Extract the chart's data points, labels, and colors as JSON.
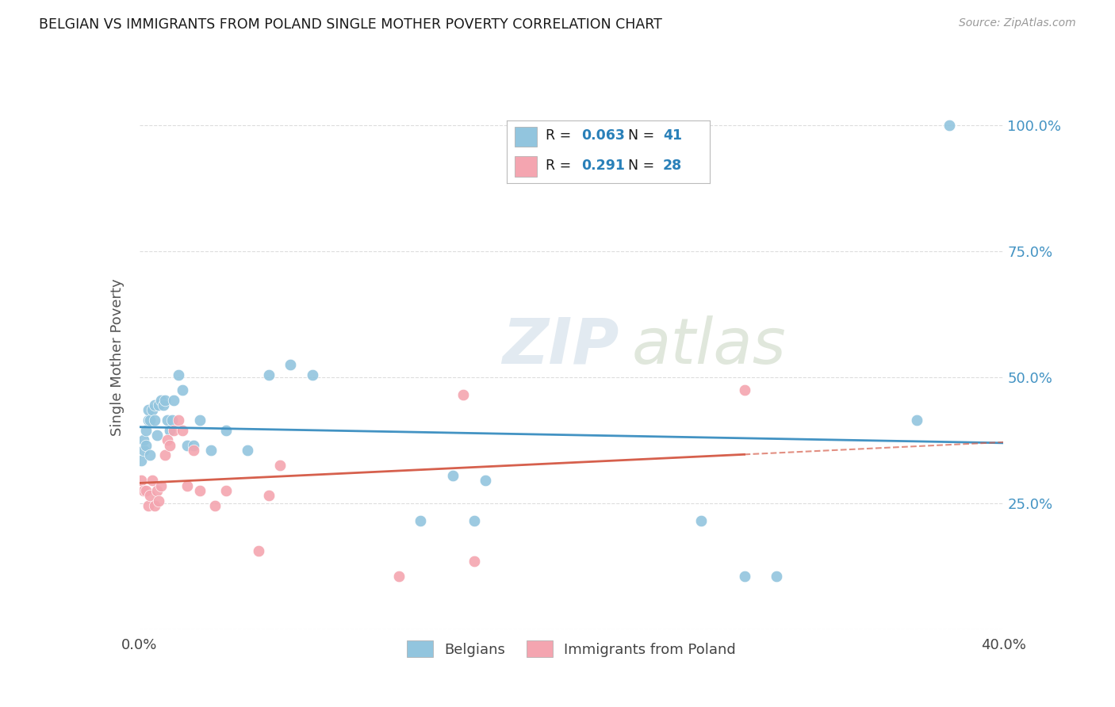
{
  "title": "BELGIAN VS IMMIGRANTS FROM POLAND SINGLE MOTHER POVERTY CORRELATION CHART",
  "source": "Source: ZipAtlas.com",
  "ylabel": "Single Mother Poverty",
  "legend_labels": [
    "Belgians",
    "Immigrants from Poland"
  ],
  "blue_R": "0.063",
  "blue_N": "41",
  "pink_R": "0.291",
  "pink_N": "28",
  "blue_color": "#92c5de",
  "pink_color": "#f4a5b0",
  "blue_line_color": "#4393c3",
  "pink_line_color": "#d6604d",
  "watermark_top": "ZIP",
  "watermark_bottom": "atlas",
  "blue_x": [
    0.001,
    0.002,
    0.002,
    0.003,
    0.003,
    0.004,
    0.004,
    0.005,
    0.005,
    0.006,
    0.007,
    0.007,
    0.008,
    0.009,
    0.01,
    0.011,
    0.012,
    0.013,
    0.014,
    0.015,
    0.016,
    0.018,
    0.02,
    0.022,
    0.025,
    0.028,
    0.033,
    0.04,
    0.05,
    0.06,
    0.07,
    0.08,
    0.13,
    0.145,
    0.155,
    0.16,
    0.26,
    0.28,
    0.295,
    0.36,
    0.375
  ],
  "blue_y": [
    0.335,
    0.355,
    0.375,
    0.365,
    0.395,
    0.415,
    0.435,
    0.345,
    0.415,
    0.435,
    0.445,
    0.415,
    0.385,
    0.445,
    0.455,
    0.445,
    0.455,
    0.415,
    0.395,
    0.415,
    0.455,
    0.505,
    0.475,
    0.365,
    0.365,
    0.415,
    0.355,
    0.395,
    0.355,
    0.505,
    0.525,
    0.505,
    0.215,
    0.305,
    0.215,
    0.295,
    0.215,
    0.105,
    0.105,
    0.415,
    1.0
  ],
  "pink_x": [
    0.001,
    0.002,
    0.003,
    0.004,
    0.005,
    0.006,
    0.007,
    0.008,
    0.009,
    0.01,
    0.012,
    0.013,
    0.014,
    0.016,
    0.018,
    0.02,
    0.022,
    0.025,
    0.028,
    0.035,
    0.04,
    0.055,
    0.06,
    0.065,
    0.12,
    0.15,
    0.155,
    0.28
  ],
  "pink_y": [
    0.295,
    0.275,
    0.275,
    0.245,
    0.265,
    0.295,
    0.245,
    0.275,
    0.255,
    0.285,
    0.345,
    0.375,
    0.365,
    0.395,
    0.415,
    0.395,
    0.285,
    0.355,
    0.275,
    0.245,
    0.275,
    0.155,
    0.265,
    0.325,
    0.105,
    0.465,
    0.135,
    0.475
  ],
  "xlim": [
    0.0,
    0.4
  ],
  "ylim": [
    0.0,
    1.08
  ],
  "yticks": [
    0.0,
    0.25,
    0.5,
    0.75,
    1.0
  ],
  "ytick_labels": [
    "",
    "25.0%",
    "50.0%",
    "75.0%",
    "100.0%"
  ],
  "xtick_positions": [
    0.0,
    0.1,
    0.2,
    0.3,
    0.4
  ],
  "xtick_labels": [
    "0.0%",
    "",
    "",
    "",
    "40.0%"
  ],
  "background_color": "#ffffff",
  "grid_color": "#dddddd",
  "right_tick_color": "#4393c3"
}
